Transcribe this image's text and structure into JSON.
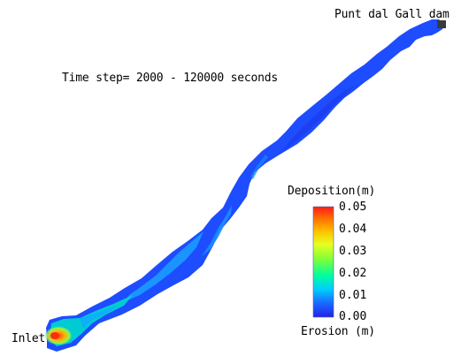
{
  "title": "Time step= 2000 - 120000 seconds",
  "labels": {
    "dam": "Punt dal Gall dam",
    "inlet": "Inlet"
  },
  "colorbar": {
    "top_label": "Deposition(m)",
    "bottom_label": "Erosion (m)",
    "ticks": [
      "0.05",
      "0.04",
      "0.03",
      "0.02",
      "0.01",
      "0.00"
    ],
    "min": 0.0,
    "max": 0.05,
    "colors": [
      "#2323e6",
      "#1a64ff",
      "#00ccff",
      "#00ff9c",
      "#7cff3a",
      "#e6ff1e",
      "#ffbf00",
      "#ff6a00",
      "#ff1a1a"
    ]
  },
  "colors": {
    "reservoir_base": "#1e50ff",
    "shallow_zone": "#1a96ff",
    "deposition_zone": "#00d6cf",
    "hotspot": "#ff3a18"
  }
}
